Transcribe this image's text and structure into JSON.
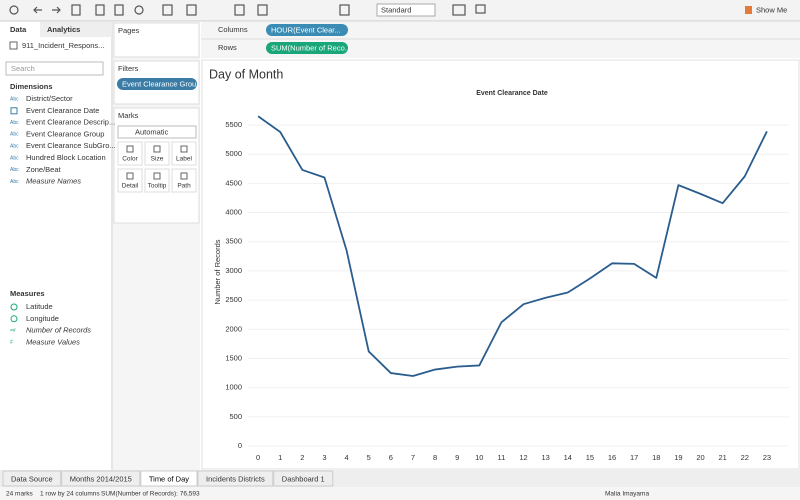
{
  "toolbar": {
    "view_size": "Standard",
    "show_me": "Show Me"
  },
  "data_pane": {
    "tabs": [
      "Data",
      "Analytics"
    ],
    "data_source": "911_Incident_Respons...",
    "search_placeholder": "Search",
    "dimensions_title": "Dimensions",
    "dimensions": [
      {
        "icon_text": "Abc",
        "label": "District/Sector"
      },
      {
        "type": "date",
        "label": "Event Clearance Date"
      },
      {
        "icon_text": "Abc",
        "label": "Event Clearance Descrip..."
      },
      {
        "icon_text": "Abc",
        "label": "Event Clearance Group"
      },
      {
        "icon_text": "Abc",
        "label": "Event Clearance SubGro..."
      },
      {
        "icon_text": "Abc",
        "label": "Hundred Block Location"
      },
      {
        "icon_text": "Abc",
        "label": "Zone/Beat"
      },
      {
        "icon_text": "Abc",
        "label": "Measure Names",
        "italic": true
      }
    ],
    "measures_title": "Measures",
    "measures": [
      {
        "type": "geo",
        "label": "Latitude"
      },
      {
        "type": "geo",
        "label": "Longitude"
      },
      {
        "icon_text": "=#",
        "label": "Number of Records",
        "italic": true
      },
      {
        "icon_text": "#",
        "label": "Measure Values",
        "italic": true
      }
    ]
  },
  "shelves": {
    "pages": "Pages",
    "filters": "Filters",
    "filter_pill": "Event Clearance Grou...",
    "marks": "Marks",
    "mark_type": "Automatic",
    "mark_cards": [
      "Color",
      "Size",
      "Label",
      "Detail",
      "Tooltip",
      "Path"
    ],
    "columns": "Columns",
    "columns_pill": "HOUR(Event Clear...",
    "rows": "Rows",
    "rows_pill": "SUM(Number of Reco..."
  },
  "sheet_tabs": [
    "Data Source",
    "Months 2014/2015",
    "Time of Day",
    "Incidents Districts",
    "Dashboard 1"
  ],
  "active_tab": 2,
  "status_bar": {
    "marks": "24 marks",
    "dimensions": "1 row by 24 columns",
    "sum": "SUM(Number of Records): 76,593",
    "user": "Malia Imayama"
  },
  "chart_data": {
    "type": "line",
    "sheet_title": "Day of Month",
    "title": "Event Clearance Date",
    "y_label": "Number of Records",
    "x": [
      0,
      1,
      2,
      3,
      4,
      5,
      6,
      7,
      8,
      9,
      10,
      11,
      12,
      13,
      14,
      15,
      16,
      17,
      18,
      19,
      20,
      21,
      22,
      23
    ],
    "series": [
      {
        "name": "Number of Records",
        "color": "#2a5d8e",
        "values": [
          5650,
          5380,
          4730,
          4600,
          3350,
          1620,
          1250,
          1200,
          1310,
          1360,
          1380,
          2120,
          2430,
          2540,
          2630,
          2870,
          3130,
          3120,
          2880,
          4470,
          4320,
          4160,
          4620,
          5390
        ]
      }
    ],
    "xlim": [
      -1,
      24
    ],
    "xticks": [
      0,
      1,
      2,
      3,
      4,
      5,
      6,
      7,
      8,
      9,
      10,
      11,
      12,
      13,
      14,
      15,
      16,
      17,
      18,
      19,
      20,
      21,
      22,
      23
    ],
    "ylim": [
      0,
      5800
    ],
    "yticks": [
      0,
      500,
      1000,
      1500,
      2000,
      2500,
      3000,
      3500,
      4000,
      4500,
      5000,
      5500
    ],
    "grid": true
  }
}
